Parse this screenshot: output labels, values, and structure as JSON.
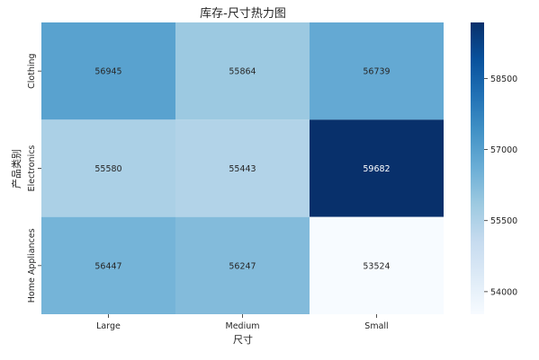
{
  "chart_data": {
    "type": "heatmap",
    "title": "库存-尺寸热力图",
    "xlabel": "尺寸",
    "ylabel": "产品类别",
    "x_categories": [
      "Large",
      "Medium",
      "Small"
    ],
    "y_categories": [
      "Clothing",
      "Electronics",
      "Home Appliances"
    ],
    "values": [
      [
        56945,
        55864,
        56739
      ],
      [
        55580,
        55443,
        59682
      ],
      [
        56447,
        56247,
        53524
      ]
    ],
    "colormap": "Blues",
    "color_range": [
      53524,
      59682
    ],
    "colorbar_ticks": [
      54000,
      55500,
      57000,
      58500
    ],
    "colorbar_tick_labels": [
      "54000",
      "55500",
      "57000",
      "58500"
    ],
    "annotated": true,
    "grid": false
  }
}
